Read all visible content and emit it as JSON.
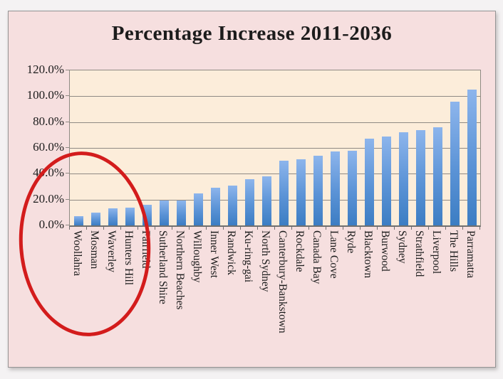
{
  "theme": {
    "canvas_bg": "#f4f2f3",
    "frame_bg": "#f6dfdf",
    "frame_border": "#949494",
    "plot_bg": "#fcedda",
    "grid": "#8f8a84",
    "axis": "#6f6f6f",
    "text": "#1c1c1c",
    "bar_top": "#8db5ec",
    "bar_bottom": "#3c7dc3",
    "red": "#d31c1c"
  },
  "chart_data": {
    "type": "bar",
    "title": "Percentage Increase 2011-2036",
    "categories": [
      "Woollahra",
      "Mosman",
      "Waverley",
      "Hunters Hill",
      "Fairfield",
      "Sutherland Shire",
      "Northern Beaches",
      "Willoughby",
      "Inner West",
      "Randwick",
      "Ku-ring-gai",
      "North Sydney",
      "Canterbury-Bankstown",
      "Rockdale",
      "Canada Bay",
      "Lane Cove",
      "Ryde",
      "Blacktown",
      "Burwood",
      "Sydney",
      "Strathfield",
      "Liverpool",
      "The Hills",
      "Parramatta"
    ],
    "values": [
      7,
      10,
      13,
      14,
      16,
      19,
      19,
      25,
      29,
      31,
      36,
      38,
      50,
      51,
      54,
      57,
      58,
      67,
      69,
      72,
      74,
      76,
      96,
      105
    ],
    "value_unit": "%",
    "xlabel": "",
    "ylabel": "",
    "ylim": [
      0,
      120
    ],
    "yticks": [
      {
        "label": "120.0%",
        "value": 120
      },
      {
        "label": "100.0%",
        "value": 100
      },
      {
        "label": "80.0%",
        "value": 80
      },
      {
        "label": "60.0%",
        "value": 60
      },
      {
        "label": "40.0%",
        "value": 40
      },
      {
        "label": "20.0%",
        "value": 20
      },
      {
        "label": "0.0%",
        "value": 0
      }
    ],
    "grid": true,
    "legend": false,
    "annotation": {
      "shape": "ellipse",
      "color": "#d31c1c",
      "circled_categories": [
        "Woollahra",
        "Mosman",
        "Waverley",
        "Hunters Hill",
        "Fairfield"
      ]
    }
  }
}
